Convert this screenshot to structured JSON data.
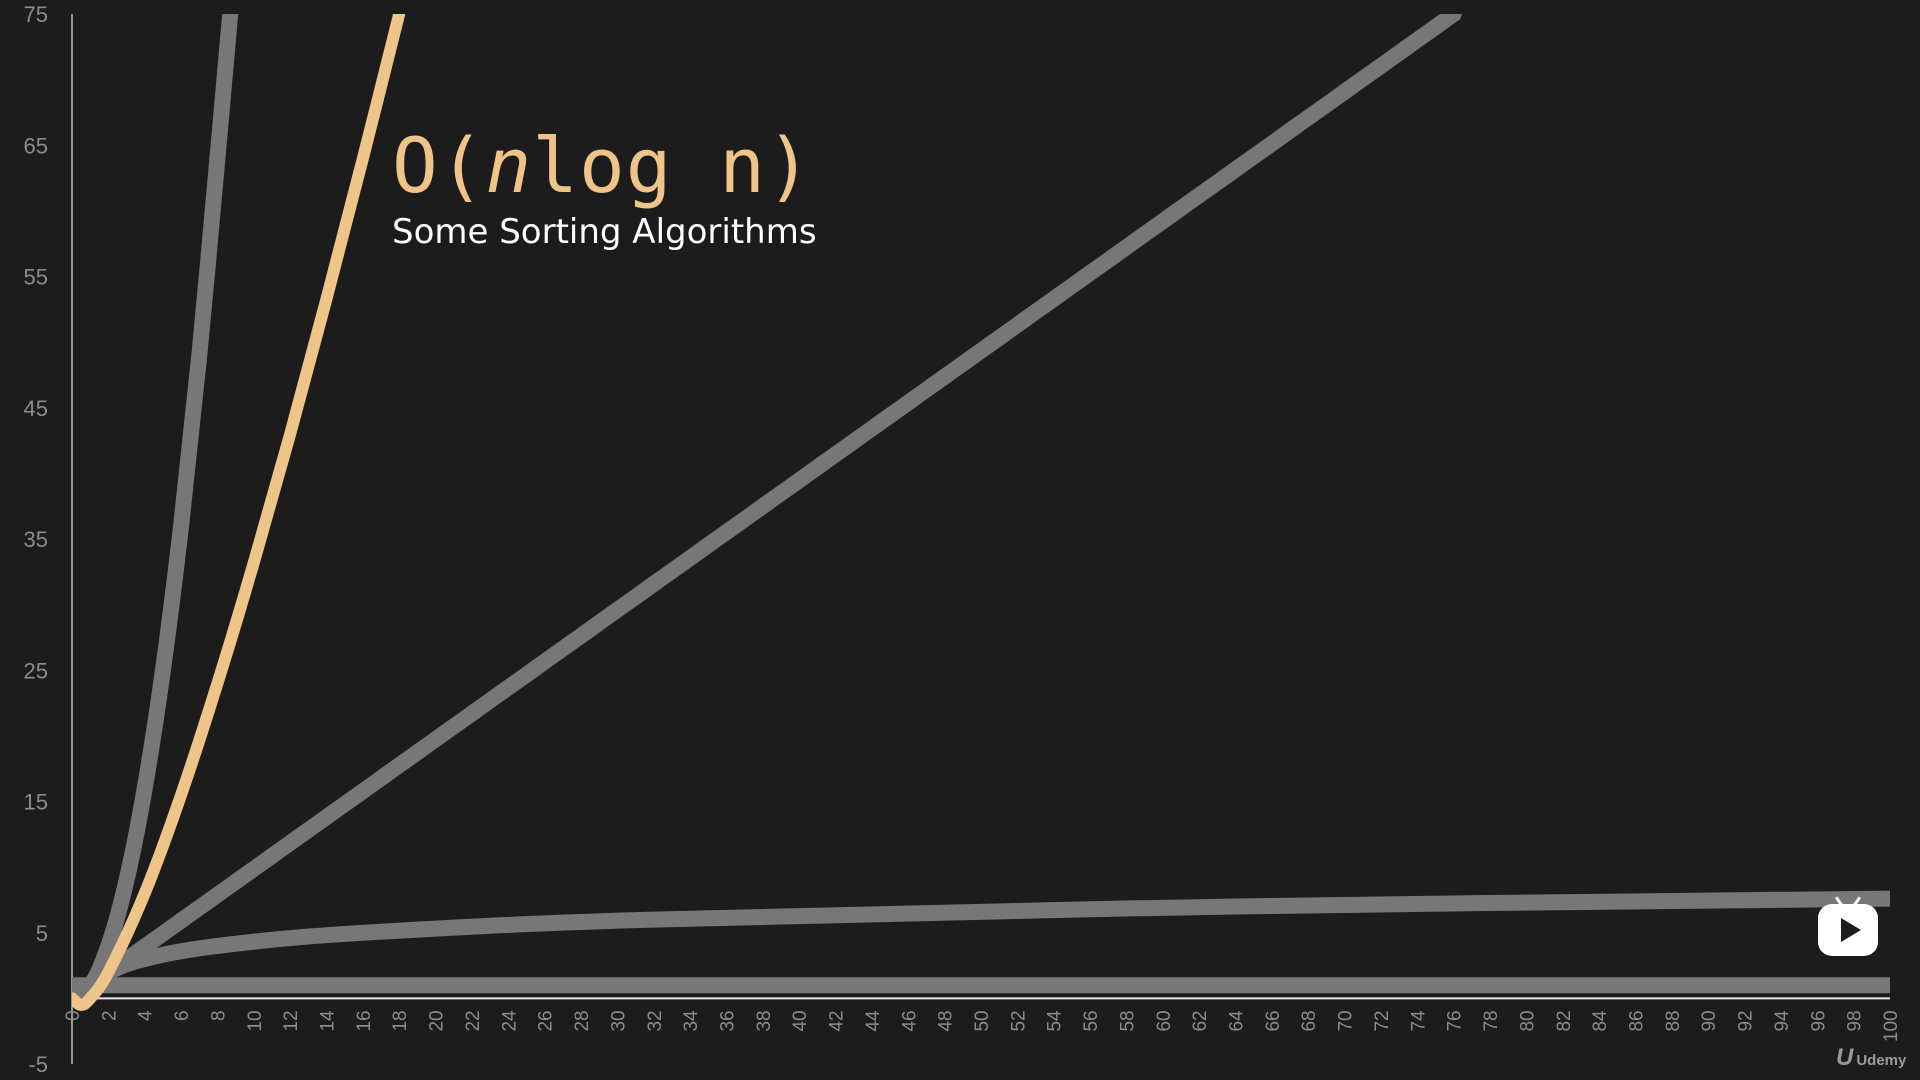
{
  "chart_data": {
    "type": "line",
    "title": "O(nlog n)",
    "title_parts": {
      "prefix": "O(",
      "italic": "n",
      "suffix": "log n)"
    },
    "subtitle": "Some Sorting Algorithms",
    "xlim": [
      0,
      100
    ],
    "ylim": [
      -5,
      75
    ],
    "x_ticks": [
      0,
      2,
      4,
      6,
      8,
      10,
      12,
      14,
      16,
      18,
      20,
      22,
      24,
      26,
      28,
      30,
      32,
      34,
      36,
      38,
      40,
      42,
      44,
      46,
      48,
      50,
      52,
      54,
      56,
      58,
      60,
      62,
      64,
      66,
      68,
      70,
      72,
      74,
      76,
      78,
      80,
      82,
      84,
      86,
      88,
      90,
      92,
      94,
      96,
      98,
      100
    ],
    "y_ticks": [
      75,
      65,
      55,
      45,
      35,
      25,
      15,
      5,
      -5
    ],
    "grid": false,
    "legend": "none",
    "highlight_color": "#efc488",
    "line_color": "#777777",
    "series": [
      {
        "kind": "constant",
        "highlight": false,
        "x": [
          0,
          100
        ],
        "y": [
          1,
          1
        ]
      },
      {
        "kind": "logarithmic",
        "highlight": false,
        "x": [
          1,
          2,
          4,
          8,
          16,
          32,
          64,
          100
        ],
        "y": [
          1,
          2,
          3,
          4,
          5,
          6,
          7,
          7.6
        ]
      },
      {
        "kind": "linear",
        "highlight": false,
        "x": [
          0,
          76
        ],
        "y": [
          0,
          75
        ]
      },
      {
        "kind": "nlogn",
        "highlight": true,
        "x": [
          0,
          0.5,
          1,
          2,
          4,
          6,
          8,
          10,
          12,
          14,
          16,
          18
        ],
        "y": [
          0,
          -0.5,
          0,
          2,
          8,
          15.5,
          24,
          33.2,
          43,
          53.3,
          64,
          75
        ]
      },
      {
        "kind": "quadratic",
        "highlight": false,
        "x": [
          0,
          1,
          2,
          3,
          4,
          5,
          6,
          7,
          8,
          8.7
        ],
        "y": [
          1,
          1,
          4,
          9,
          16,
          25,
          36,
          49,
          64,
          75
        ]
      }
    ]
  },
  "player": {
    "icon": "play-tv-icon"
  },
  "watermark": {
    "glyph": "U",
    "text": "Udemy"
  }
}
